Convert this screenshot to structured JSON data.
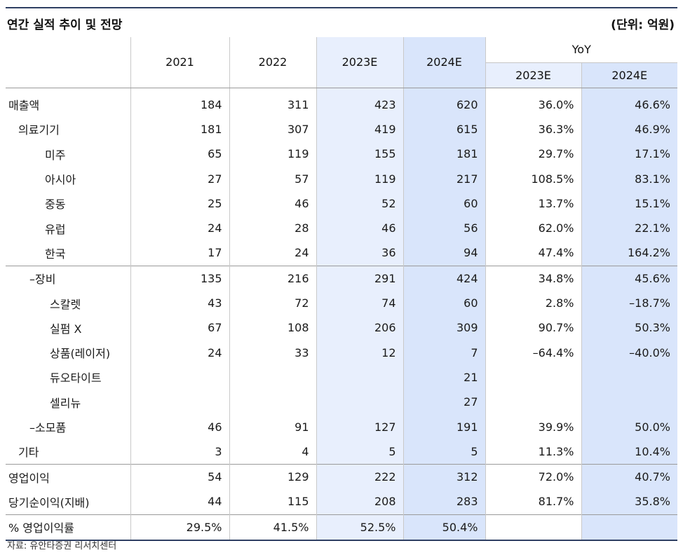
{
  "title": "연간 실적 추이 및 전망",
  "unit": "(단위: 억원)",
  "columns": {
    "years": [
      "2021",
      "2022",
      "2023E",
      "2024E"
    ],
    "yoy_group": "YoY",
    "yoy_years": [
      "2023E",
      "2024E"
    ]
  },
  "rows": [
    {
      "label": "매출액",
      "values": [
        "184",
        "311",
        "423",
        "620"
      ],
      "yoy": [
        "36.0%",
        "46.6%"
      ]
    },
    {
      "label": "의료기기",
      "values": [
        "181",
        "307",
        "419",
        "615"
      ],
      "yoy": [
        "36.3%",
        "46.9%"
      ]
    },
    {
      "label": "미주",
      "values": [
        "65",
        "119",
        "155",
        "181"
      ],
      "yoy": [
        "29.7%",
        "17.1%"
      ]
    },
    {
      "label": "아시아",
      "values": [
        "27",
        "57",
        "119",
        "217"
      ],
      "yoy": [
        "108.5%",
        "83.1%"
      ]
    },
    {
      "label": "중동",
      "values": [
        "25",
        "46",
        "52",
        "60"
      ],
      "yoy": [
        "13.7%",
        "15.1%"
      ]
    },
    {
      "label": "유럽",
      "values": [
        "24",
        "28",
        "46",
        "56"
      ],
      "yoy": [
        "62.0%",
        "22.1%"
      ]
    },
    {
      "label": "한국",
      "values": [
        "17",
        "24",
        "36",
        "94"
      ],
      "yoy": [
        "47.4%",
        "164.2%"
      ]
    },
    {
      "label": "–장비",
      "values": [
        "135",
        "216",
        "291",
        "424"
      ],
      "yoy": [
        "34.8%",
        "45.6%"
      ]
    },
    {
      "label": "스칼렛",
      "values": [
        "43",
        "72",
        "74",
        "60"
      ],
      "yoy": [
        "2.8%",
        "–18.7%"
      ]
    },
    {
      "label": "실펌 X",
      "values": [
        "67",
        "108",
        "206",
        "309"
      ],
      "yoy": [
        "90.7%",
        "50.3%"
      ]
    },
    {
      "label": "상품(레이저)",
      "values": [
        "24",
        "33",
        "12",
        "7"
      ],
      "yoy": [
        "–64.4%",
        "–40.0%"
      ]
    },
    {
      "label": "듀오타이트",
      "values": [
        "",
        "",
        "",
        "21"
      ],
      "yoy": [
        "",
        ""
      ]
    },
    {
      "label": "셀리뉴",
      "values": [
        "",
        "",
        "",
        "27"
      ],
      "yoy": [
        "",
        ""
      ]
    },
    {
      "label": "–소모품",
      "values": [
        "46",
        "91",
        "127",
        "191"
      ],
      "yoy": [
        "39.9%",
        "50.0%"
      ]
    },
    {
      "label": "기타",
      "values": [
        "3",
        "4",
        "5",
        "5"
      ],
      "yoy": [
        "11.3%",
        "10.4%"
      ]
    },
    {
      "label": "영업이익",
      "values": [
        "54",
        "129",
        "222",
        "312"
      ],
      "yoy": [
        "72.0%",
        "40.7%"
      ]
    },
    {
      "label": "당기순이익(지배)",
      "values": [
        "44",
        "115",
        "208",
        "283"
      ],
      "yoy": [
        "81.7%",
        "35.8%"
      ]
    },
    {
      "label": "% 영업이익률",
      "values": [
        "29.5%",
        "41.5%",
        "52.5%",
        "50.4%"
      ],
      "yoy": [
        "",
        ""
      ]
    }
  ],
  "source": "자료: 유안타증권 리서치센터",
  "colors": {
    "rule": "#2e3f63",
    "shade_2023E": "#e8effd",
    "shade_2024E": "#d9e5fb"
  }
}
